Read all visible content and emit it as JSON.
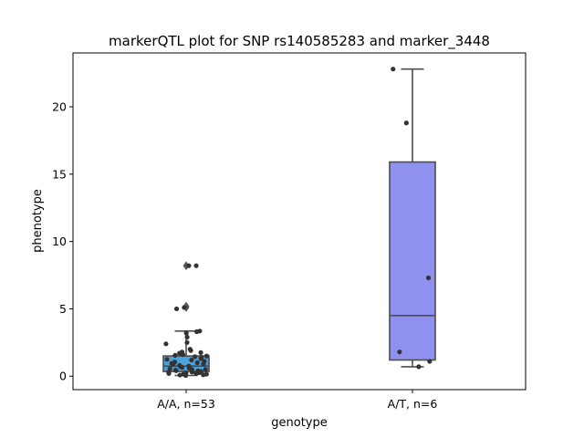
{
  "chart_data": {
    "type": "box",
    "title": "markerQTL plot for SNP rs140585283 and marker_3448",
    "xlabel": "genotype",
    "ylabel": "phenotype",
    "ylim": [
      -1.0,
      24.0
    ],
    "yticks": [
      0,
      5,
      10,
      15,
      20
    ],
    "grid": false,
    "categories": [
      "A/A, n=53",
      "A/T, n=6"
    ],
    "boxes": [
      {
        "category": "A/A, n=53",
        "color": "#4aa3df",
        "q1": 0.35,
        "median": 0.75,
        "q3": 1.5,
        "whisker_low": 0.05,
        "whisker_high": 3.35,
        "outliers": [
          8.2,
          5.1,
          5.2
        ],
        "points": [
          8.2,
          8.2,
          5.1,
          5.0,
          3.35,
          3.3,
          3.2,
          2.9,
          2.5,
          2.4,
          2.0,
          1.9,
          1.8,
          1.75,
          1.7,
          1.6,
          1.55,
          1.5,
          1.45,
          1.4,
          1.3,
          1.25,
          1.2,
          1.1,
          1.05,
          1.0,
          0.95,
          0.9,
          0.85,
          0.8,
          0.75,
          0.7,
          0.65,
          0.6,
          0.55,
          0.5,
          0.5,
          0.45,
          0.4,
          0.4,
          0.35,
          0.3,
          0.3,
          0.25,
          0.25,
          0.2,
          0.2,
          0.15,
          0.15,
          0.1,
          0.1,
          0.08,
          0.05
        ]
      },
      {
        "category": "A/T, n=6",
        "color": "#9090f0",
        "q1": 1.2,
        "median": 4.5,
        "q3": 15.9,
        "whisker_low": 0.7,
        "whisker_high": 22.8,
        "outliers": [],
        "points": [
          22.8,
          18.8,
          7.3,
          1.8,
          1.1,
          0.7
        ]
      }
    ]
  }
}
